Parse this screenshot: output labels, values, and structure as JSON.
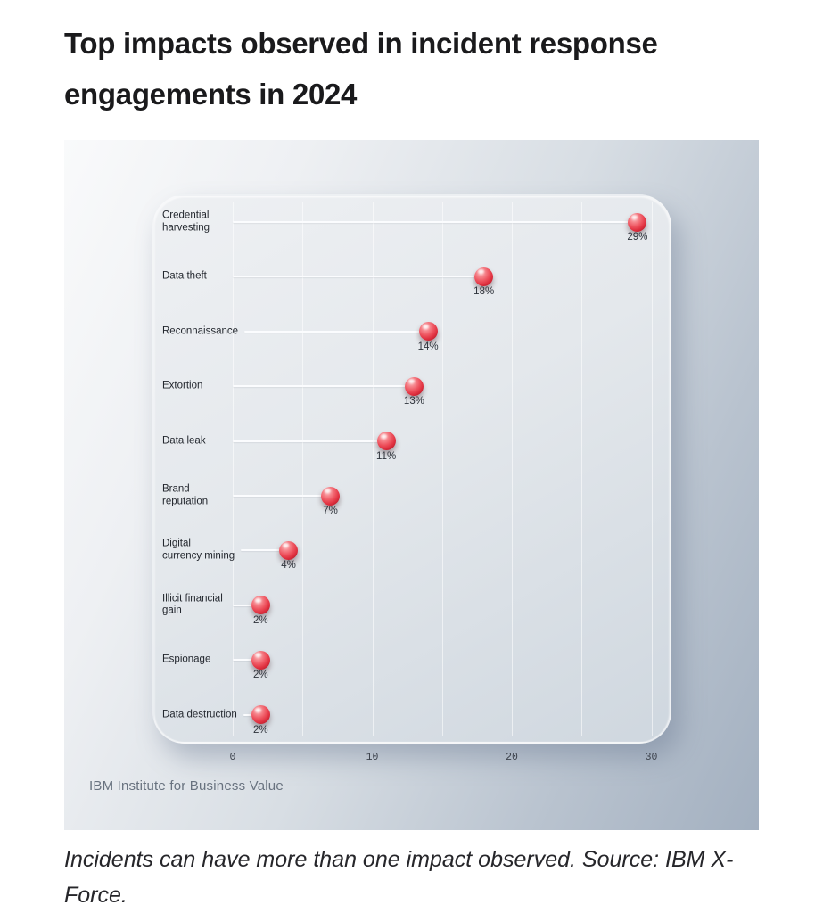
{
  "page": {
    "title": "Top impacts observed in incident response engagements in 2024",
    "caption": "Incidents can have more than one impact observed. Source: IBM X-Force.",
    "attribution": "IBM Institute for Business Value"
  },
  "colors": {
    "dot_red": "#e03140",
    "lollipop_line": "#fbfcfe",
    "panel_steel_blue": "#a3b0c0",
    "panel_light": "#eef0f3"
  },
  "chart_data": {
    "type": "scatter",
    "variant": "horizontal-lollipop",
    "title": "Top impacts observed in incident response engagements in 2024",
    "categories": [
      "Credential harvesting",
      "Data theft",
      "Reconnaissance",
      "Extortion",
      "Data leak",
      "Brand reputation",
      "Digital currency mining",
      "Illicit financial gain",
      "Espionage",
      "Data destruction"
    ],
    "label_lines": [
      [
        "Credential",
        "harvesting"
      ],
      [
        "Data theft"
      ],
      [
        "Reconnaissance"
      ],
      [
        "Extortion"
      ],
      [
        "Data leak"
      ],
      [
        "Brand",
        "reputation"
      ],
      [
        "Digital",
        "currency mining"
      ],
      [
        "Illicit financial",
        "gain"
      ],
      [
        "Espionage"
      ],
      [
        "Data destruction"
      ]
    ],
    "values": [
      29,
      18,
      14,
      13,
      11,
      7,
      4,
      2,
      2,
      2
    ],
    "value_labels": [
      "29%",
      "18%",
      "14%",
      "13%",
      "11%",
      "7%",
      "4%",
      "2%",
      "2%",
      "2%"
    ],
    "unit": "percent",
    "xlabel": "",
    "ylabel": "",
    "xlim": [
      0,
      31.5
    ],
    "x_ticks": [
      0,
      10,
      20,
      30
    ],
    "gridline_values": [
      0,
      5,
      10,
      15,
      20,
      25,
      30
    ],
    "grid": true,
    "legend": false,
    "source": "IBM Institute for Business Value"
  }
}
